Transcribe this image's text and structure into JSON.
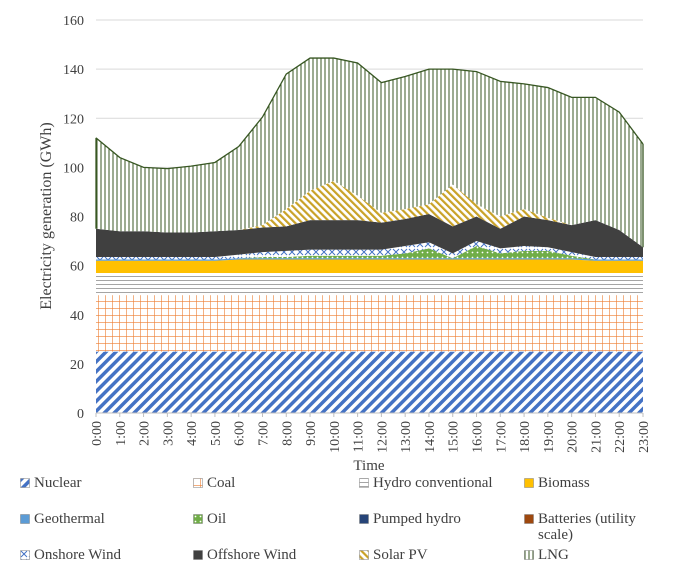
{
  "chart_data": {
    "type": "area",
    "stacked": true,
    "title": "",
    "xlabel": "Time",
    "ylabel": "Electricity generation (GWh)",
    "ylim": [
      0,
      160
    ],
    "yticks": [
      0,
      20,
      40,
      60,
      80,
      100,
      120,
      140,
      160
    ],
    "grid": true,
    "legend_position": "bottom",
    "categories": [
      "0:00",
      "1:00",
      "2:00",
      "3:00",
      "4:00",
      "5:00",
      "6:00",
      "7:00",
      "8:00",
      "9:00",
      "10:00",
      "11:00",
      "12:00",
      "13:00",
      "14:00",
      "15:00",
      "16:00",
      "17:00",
      "18:00",
      "19:00",
      "20:00",
      "21:00",
      "22:00",
      "23:00"
    ],
    "series": [
      {
        "name": "Nuclear",
        "pattern": "diag-nuclear",
        "values": [
          25,
          25,
          25,
          25,
          25,
          25,
          25,
          25,
          25,
          25,
          25,
          25,
          25,
          25,
          25,
          25,
          25,
          25,
          25,
          25,
          25,
          25,
          25,
          25
        ]
      },
      {
        "name": "Coal",
        "pattern": "grid-coal",
        "values": [
          23,
          23,
          23,
          23,
          23,
          23,
          23,
          23,
          23,
          23,
          23,
          23,
          23,
          23,
          23,
          23,
          23,
          23,
          23,
          23,
          23,
          23,
          23,
          23
        ]
      },
      {
        "name": "Hydro conventional",
        "pattern": "hstripe-hydro",
        "values": [
          9,
          9,
          9,
          9,
          9,
          9,
          9,
          9,
          9,
          9,
          9,
          9,
          9,
          9,
          9,
          9,
          9,
          9,
          9,
          9,
          9,
          9,
          9,
          9
        ]
      },
      {
        "name": "Biomass",
        "pattern": "solid-biomass",
        "values": [
          5,
          5,
          5,
          5,
          5,
          5,
          5.5,
          5.5,
          5.5,
          5.5,
          5.5,
          5.5,
          5.5,
          5.5,
          5.5,
          5.5,
          5.5,
          5.5,
          5.5,
          5.5,
          5.5,
          5,
          5,
          5
        ]
      },
      {
        "name": "Geothermal",
        "pattern": "solid-geothermal",
        "values": [
          0.5,
          0.5,
          0.5,
          0.5,
          0.5,
          0.5,
          0.5,
          0.5,
          0.5,
          0.5,
          0.5,
          0.5,
          0.5,
          0.5,
          0.5,
          0.5,
          0.5,
          0.5,
          0.5,
          0.5,
          0.5,
          0.5,
          0.5,
          0.5
        ]
      },
      {
        "name": "Oil",
        "pattern": "dots-oil",
        "values": [
          0,
          0,
          0,
          0,
          0,
          0,
          0,
          0.5,
          0.5,
          1,
          1,
          1,
          1,
          2,
          4,
          0,
          5,
          2,
          3,
          3,
          1,
          0,
          0,
          0
        ]
      },
      {
        "name": "Pumped hydro",
        "pattern": "solid-pumped",
        "values": [
          0,
          0,
          0,
          0,
          0,
          0,
          0,
          0,
          0,
          0,
          0,
          0,
          0,
          0,
          0,
          0,
          0,
          0,
          0,
          0,
          0,
          0,
          0,
          0
        ]
      },
      {
        "name": "Batteries (utility scale)",
        "pattern": "solid-batteries",
        "values": [
          0,
          0,
          0,
          0,
          0,
          0,
          0,
          0,
          0,
          0,
          0,
          0,
          0,
          0,
          0,
          0,
          0,
          0,
          0,
          0,
          0,
          0,
          0,
          0
        ]
      },
      {
        "name": "Onshore Wind",
        "pattern": "x-onshore",
        "values": [
          1,
          1,
          1,
          1,
          1,
          1,
          1.5,
          2,
          2.5,
          2.5,
          2.5,
          2.5,
          2.5,
          3,
          2.5,
          2,
          2,
          2,
          2,
          1.5,
          1.5,
          1,
          1,
          1
        ]
      },
      {
        "name": "Offshore Wind",
        "pattern": "solid-offshore",
        "values": [
          11.5,
          10.5,
          10.5,
          10,
          10,
          10.5,
          10,
          10,
          10,
          12,
          12,
          12,
          11,
          11,
          11.5,
          11,
          10,
          8,
          12,
          11,
          11,
          15,
          11,
          4
        ]
      },
      {
        "name": "Solar PV",
        "pattern": "diag-solar",
        "values": [
          0,
          0,
          0,
          0,
          0,
          0,
          0,
          1,
          7,
          12,
          16,
          10,
          4,
          4,
          4,
          17,
          5,
          5,
          3,
          1,
          0,
          0,
          0,
          0
        ]
      },
      {
        "name": "LNG",
        "pattern": "vstripe-lng",
        "values": [
          37,
          30,
          26,
          26,
          27,
          28,
          34,
          44,
          55,
          54,
          50,
          54,
          53,
          54,
          55,
          47,
          54,
          55,
          51,
          53,
          52,
          50,
          48,
          42
        ]
      }
    ]
  },
  "legend": {
    "items": [
      {
        "label": "Nuclear",
        "pattern": "diag-nuclear",
        "col": 0,
        "row": 0
      },
      {
        "label": "Coal",
        "pattern": "grid-coal",
        "col": 1,
        "row": 0
      },
      {
        "label": "Hydro conventional",
        "pattern": "hstripe-hydro",
        "col": 2,
        "row": 0
      },
      {
        "label": "Biomass",
        "pattern": "solid-biomass",
        "col": 3,
        "row": 0
      },
      {
        "label": "Geothermal",
        "pattern": "solid-geothermal",
        "col": 0,
        "row": 1
      },
      {
        "label": "Oil",
        "pattern": "dots-oil",
        "col": 1,
        "row": 1
      },
      {
        "label": "Pumped hydro",
        "pattern": "solid-pumped",
        "col": 2,
        "row": 1
      },
      {
        "label": "Batteries (utility scale)",
        "pattern": "solid-batteries",
        "col": 3,
        "row": 1
      },
      {
        "label": "Onshore Wind",
        "pattern": "x-onshore",
        "col": 0,
        "row": 2
      },
      {
        "label": "Offshore Wind",
        "pattern": "solid-offshore",
        "col": 1,
        "row": 2
      },
      {
        "label": "Solar PV",
        "pattern": "diag-solar",
        "col": 2,
        "row": 2
      },
      {
        "label": "LNG",
        "pattern": "vstripe-lng",
        "col": 3,
        "row": 2
      }
    ]
  },
  "colors": {
    "nuclear": "#4472c4",
    "coal": "#ed7d31",
    "hydro": "#a5a5a5",
    "biomass": "#ffc000",
    "geothermal": "#5b9bd5",
    "oil": "#70ad47",
    "pumped": "#264478",
    "batteries": "#9e480e",
    "onshore": "#4472c4",
    "offshore": "#404040",
    "solar": "#c9a227",
    "lng": "#385723",
    "grid": "#d9d9d9",
    "axis": "#bfbfbf"
  }
}
